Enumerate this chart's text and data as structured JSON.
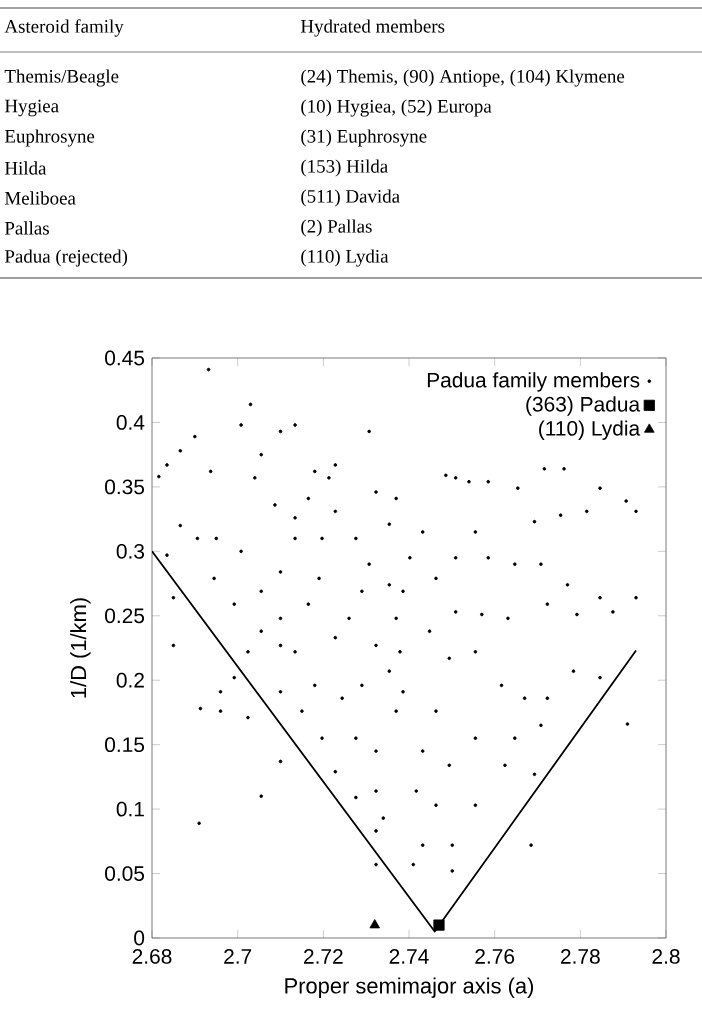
{
  "chart_data": [
    {
      "type": "other",
      "annotations": [
        "Asteroid family",
        "Hydrated members",
        "Themis/Beagle",
        "(24) Themis, (90) Antiope, (104) Klymene",
        "Hygiea",
        "(10) Hygiea, (52) Europa",
        "Euphrosyne",
        "(31) Euphrosyne",
        "Hilda",
        "(153) Hilda",
        "Meliboea",
        "(511) Davida",
        "Pallas",
        "(2) Pallas",
        "Padua (rejected)",
        "(110) Lydia"
      ]
    },
    {
      "type": "scatter",
      "xlabel": "Proper semimajor axis (a)",
      "ylabel": "1/D (1/km)",
      "xlim": [
        2.68,
        2.8
      ],
      "ylim": [
        0,
        0.45
      ],
      "xticks": [
        2.68,
        2.7,
        2.72,
        2.74,
        2.76,
        2.78,
        2.8
      ],
      "yticks": [
        0,
        0.05,
        0.1,
        0.15,
        0.2,
        0.25,
        0.3,
        0.35,
        0.4,
        0.45
      ],
      "legend": "top right",
      "series": [
        {
          "name": "Padua family members",
          "type": "scatter",
          "marker": "circle",
          "color": "#000000",
          "x": [
            2.6932,
            2.6816,
            2.6835,
            2.6866,
            2.69,
            2.6937,
            2.7008,
            2.703,
            2.7055,
            2.71,
            2.7134,
            2.704,
            2.7087,
            2.7134,
            2.6866,
            2.6906,
            2.695,
            2.7008,
            2.6835,
            2.685,
            2.6945,
            2.6992,
            2.7055,
            2.71,
            2.7134,
            2.7165,
            2.718,
            2.7228,
            2.7228,
            2.7197,
            2.719,
            2.7165,
            2.71,
            2.7055,
            2.7024,
            2.6992,
            2.696,
            2.6913,
            2.696,
            2.685,
            2.691,
            2.7055,
            2.71,
            2.7024,
            2.71,
            2.715,
            2.718,
            2.7134,
            2.71,
            2.7228,
            2.726,
            2.729,
            2.7307,
            2.7276,
            2.7323,
            2.729,
            2.7244,
            2.7197,
            2.7228,
            2.7276,
            2.7323,
            2.7323,
            2.734,
            2.7323,
            2.7323,
            2.7276,
            2.737,
            2.7354,
            2.737,
            2.7354,
            2.7354,
            2.7323,
            2.7307,
            2.7213,
            2.7486,
            2.7509,
            2.754,
            2.7585,
            2.7654,
            2.7716,
            2.7762,
            2.7846,
            2.7907,
            2.793,
            2.7815,
            2.7754,
            2.7693,
            2.7555,
            2.7432,
            2.7402,
            2.7463,
            2.7509,
            2.7585,
            2.7647,
            2.7708,
            2.777,
            2.7846,
            2.793,
            2.7876,
            2.7792,
            2.7723,
            2.7631,
            2.757,
            2.7509,
            2.7448,
            2.7494,
            2.7555,
            2.7616,
            2.767,
            2.7723,
            2.7784,
            2.7846,
            2.791,
            2.7708,
            2.7647,
            2.7624,
            2.7693,
            2.7555,
            2.7494,
            2.7432,
            2.7417,
            2.7463,
            2.7501,
            2.7432,
            2.741,
            2.7555,
            2.7685,
            2.7501,
            2.7463,
            2.7386,
            2.7379,
            2.7386,
            2.737
          ],
          "values": [
            0.441,
            0.358,
            0.367,
            0.378,
            0.389,
            0.362,
            0.398,
            0.414,
            0.375,
            0.393,
            0.398,
            0.357,
            0.336,
            0.326,
            0.32,
            0.31,
            0.31,
            0.3,
            0.297,
            0.264,
            0.279,
            0.259,
            0.269,
            0.284,
            0.31,
            0.341,
            0.362,
            0.367,
            0.331,
            0.31,
            0.279,
            0.259,
            0.248,
            0.238,
            0.222,
            0.202,
            0.191,
            0.178,
            0.176,
            0.227,
            0.089,
            0.11,
            0.137,
            0.171,
            0.191,
            0.176,
            0.196,
            0.222,
            0.227,
            0.233,
            0.248,
            0.269,
            0.29,
            0.31,
            0.227,
            0.196,
            0.186,
            0.155,
            0.129,
            0.155,
            0.145,
            0.114,
            0.093,
            0.083,
            0.057,
            0.109,
            0.176,
            0.207,
            0.248,
            0.274,
            0.321,
            0.346,
            0.393,
            0.357,
            0.359,
            0.357,
            0.354,
            0.354,
            0.349,
            0.364,
            0.364,
            0.349,
            0.339,
            0.331,
            0.331,
            0.328,
            0.323,
            0.315,
            0.315,
            0.295,
            0.279,
            0.295,
            0.295,
            0.29,
            0.29,
            0.274,
            0.264,
            0.264,
            0.253,
            0.251,
            0.259,
            0.248,
            0.251,
            0.253,
            0.238,
            0.217,
            0.222,
            0.196,
            0.186,
            0.186,
            0.207,
            0.202,
            0.166,
            0.165,
            0.155,
            0.134,
            0.127,
            0.155,
            0.134,
            0.145,
            0.114,
            0.103,
            0.072,
            0.072,
            0.057,
            0.103,
            0.072,
            0.052,
            0.176,
            0.191,
            0.222,
            0.269,
            0.341
          ]
        },
        {
          "name": "(363) Padua",
          "type": "scatter",
          "marker": "square",
          "color": "#000000",
          "x": [
            2.747
          ],
          "values": [
            0.01
          ]
        },
        {
          "name": "(110) Lydia",
          "type": "scatter",
          "marker": "triangle",
          "color": "#000000",
          "x": [
            2.732
          ],
          "values": [
            0.01
          ]
        },
        {
          "type": "line",
          "marker": "none",
          "color": "#000000",
          "x": [
            2.68,
            2.746,
            2.793
          ],
          "values": [
            0.3,
            0.005,
            0.223
          ]
        }
      ]
    }
  ]
}
